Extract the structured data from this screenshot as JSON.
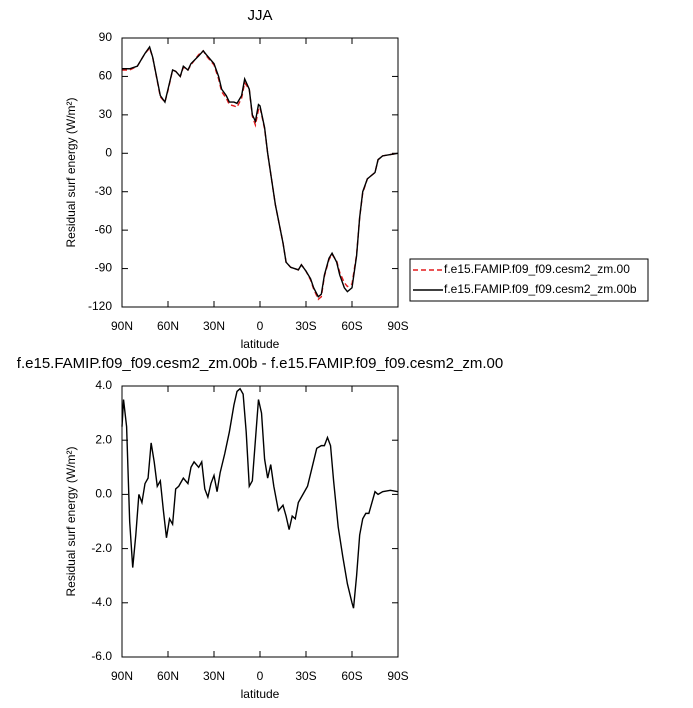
{
  "chart_data": [
    {
      "type": "line",
      "title": "JJA",
      "x_label": "latitude",
      "y_label": "Residual surf energy (W/m²)",
      "x": [
        90,
        85,
        80,
        75,
        72,
        70,
        65,
        62,
        60,
        57,
        55,
        52,
        50,
        47,
        45,
        40,
        37,
        35,
        30,
        27,
        25,
        22,
        20,
        17,
        15,
        12,
        10,
        7,
        5,
        3,
        1,
        0,
        -3,
        -5,
        -10,
        -15,
        -17,
        -20,
        -25,
        -27,
        -30,
        -33,
        -35,
        -38,
        -40,
        -42,
        -45,
        -47,
        -50,
        -52,
        -55,
        -57,
        -60,
        -63,
        -65,
        -67,
        -70,
        -75,
        -77,
        -80,
        -85,
        -90
      ],
      "series": [
        {
          "name": "f.e15.FAMIP.f09_f09.cesm2_zm.00",
          "color": "#e31a1c",
          "dashed": true,
          "values": [
            65,
            65,
            68,
            78,
            82,
            75,
            44,
            40,
            49,
            65,
            64,
            60,
            67,
            65,
            69,
            77,
            80,
            76,
            69,
            58,
            48,
            43,
            38,
            37,
            36,
            43,
            55,
            50,
            29,
            22,
            34,
            36,
            19,
            0,
            -40,
            -70,
            -85,
            -89,
            -91,
            -87,
            -92,
            -99,
            -106,
            -114,
            -112,
            -96,
            -83,
            -79,
            -84,
            -93,
            -101,
            -104,
            -102,
            -79,
            -50,
            -31,
            -20,
            -15,
            -5,
            -2,
            -1,
            0
          ]
        },
        {
          "name": "f.e15.FAMIP.f09_f09.cesm2_zm.00b",
          "color": "#000000",
          "dashed": false,
          "values": [
            66,
            66,
            68,
            78,
            83,
            75,
            45,
            40,
            50,
            65,
            64,
            60,
            68,
            65,
            70,
            76,
            80,
            77,
            70,
            60,
            50,
            45,
            40,
            40,
            39,
            45,
            58,
            50,
            30,
            25,
            38,
            37,
            20,
            0,
            -40,
            -70,
            -85,
            -89,
            -91,
            -87,
            -92,
            -98,
            -105,
            -112,
            -110,
            -95,
            -82,
            -78,
            -85,
            -95,
            -105,
            -108,
            -105,
            -80,
            -50,
            -30,
            -20,
            -15,
            -5,
            -2,
            -1,
            0
          ]
        }
      ],
      "xlim": [
        90,
        -90
      ],
      "xticks": [
        {
          "value": 90,
          "label": "90N"
        },
        {
          "value": 60,
          "label": "60N"
        },
        {
          "value": 30,
          "label": "30N"
        },
        0,
        {
          "value": -30,
          "label": "30S"
        },
        {
          "value": -60,
          "label": "60S"
        },
        {
          "value": -90,
          "label": "90S"
        }
      ],
      "ylim": [
        -120,
        90
      ],
      "yticks": [
        -120,
        -90,
        -60,
        -30,
        0,
        30,
        60,
        90
      ],
      "legend": "right"
    },
    {
      "type": "line",
      "title": "f.e15.FAMIP.f09_f09.cesm2_zm.00b - f.e15.FAMIP.f09_f09.cesm2_zm.00",
      "x_label": "latitude",
      "y_label": "Residual surf energy (W/m²)",
      "x": [
        90,
        89,
        87,
        85,
        83,
        81,
        79,
        77,
        75,
        73,
        71,
        69,
        67,
        65,
        63,
        61,
        59,
        57,
        55,
        53,
        50,
        47,
        45,
        43,
        40,
        38,
        36,
        34,
        32,
        30,
        28,
        26,
        23,
        20,
        17,
        15,
        13,
        11,
        9,
        7,
        5,
        3,
        1,
        -1,
        -3,
        -5,
        -7,
        -9,
        -12,
        -15,
        -17,
        -19,
        -21,
        -23,
        -25,
        -28,
        -31,
        -34,
        -37,
        -40,
        -42,
        -44,
        -46,
        -48,
        -51,
        -54,
        -57,
        -60,
        -61,
        -63,
        -65,
        -67,
        -69,
        -71,
        -73,
        -75,
        -77,
        -80,
        -85,
        -90
      ],
      "series": [
        {
          "color": "#000000",
          "dashed": false,
          "values": [
            2.5,
            3.5,
            2.5,
            -1.0,
            -2.7,
            -1.5,
            0.0,
            -0.3,
            0.4,
            0.6,
            1.9,
            1.2,
            0.3,
            0.5,
            -0.6,
            -1.6,
            -0.9,
            -1.1,
            0.2,
            0.3,
            0.6,
            0.4,
            1.0,
            1.2,
            1.0,
            1.2,
            0.2,
            -0.1,
            0.4,
            0.7,
            0.1,
            0.8,
            1.5,
            2.3,
            3.3,
            3.8,
            3.9,
            3.7,
            2.3,
            0.3,
            0.5,
            2.0,
            3.5,
            3.0,
            1.3,
            0.6,
            1.1,
            0.3,
            -0.6,
            -0.4,
            -0.8,
            -1.3,
            -0.8,
            -0.9,
            -0.3,
            0.0,
            0.3,
            1.0,
            1.7,
            1.8,
            1.8,
            2.1,
            1.8,
            0.5,
            -1.2,
            -2.3,
            -3.3,
            -4.0,
            -4.2,
            -3.0,
            -1.5,
            -0.9,
            -0.7,
            -0.7,
            -0.3,
            0.1,
            0.0,
            0.1,
            0.15,
            0.1
          ]
        }
      ],
      "xlim": [
        90,
        -90
      ],
      "xticks": [
        {
          "value": 90,
          "label": "90N"
        },
        {
          "value": 60,
          "label": "60N"
        },
        {
          "value": 30,
          "label": "30N"
        },
        0,
        {
          "value": -30,
          "label": "30S"
        },
        {
          "value": -60,
          "label": "60S"
        },
        {
          "value": -90,
          "label": "90S"
        }
      ],
      "ylim": [
        -6,
        4
      ],
      "yticks": [
        {
          "value": -6,
          "label": "-6.0"
        },
        {
          "value": -4,
          "label": "-4.0"
        },
        {
          "value": -2,
          "label": "-2.0"
        },
        {
          "value": 0,
          "label": "0.0"
        },
        {
          "value": 2,
          "label": "2.0"
        },
        {
          "value": 4,
          "label": "4.0"
        }
      ]
    }
  ]
}
